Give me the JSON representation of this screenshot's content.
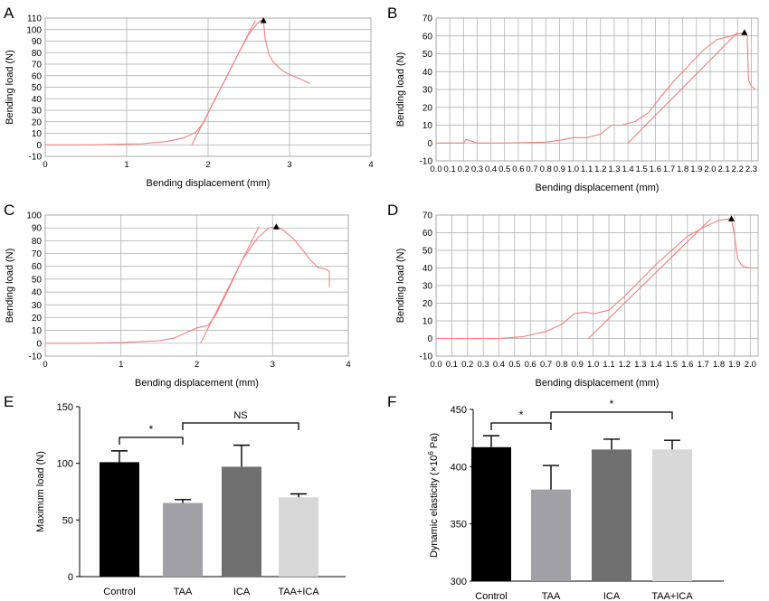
{
  "chart_data": [
    {
      "panel": "A",
      "type": "line",
      "xlabel": "Bending displacement (mm)",
      "ylabel": "Bending load (N)",
      "xlim": [
        0,
        4
      ],
      "ylim": [
        -10,
        110
      ],
      "xticks": [
        "0",
        "1",
        "2",
        "3",
        "4"
      ],
      "yticks": [
        "-10",
        "0",
        "10",
        "20",
        "30",
        "40",
        "50",
        "60",
        "70",
        "80",
        "90",
        "100",
        "110"
      ],
      "grid": true,
      "series": [
        {
          "x": [
            0,
            0.5,
            0.9,
            1.2,
            1.5,
            1.7,
            1.85,
            1.95,
            2.05,
            2.2,
            2.35,
            2.5,
            2.6,
            2.65,
            2.68,
            2.7,
            2.75,
            2.8,
            2.9,
            3.0,
            3.1,
            3.2,
            3.25
          ],
          "y": [
            0,
            0,
            0.5,
            1,
            3,
            6,
            11,
            20,
            35,
            55,
            76,
            96,
            105,
            108,
            108,
            92,
            78,
            72,
            65,
            61,
            58,
            55,
            53
          ]
        },
        {
          "x": [
            1.8,
            2.58
          ],
          "y": [
            0,
            108
          ]
        }
      ],
      "annotations": [
        {
          "marker": "triangle",
          "x": 2.68,
          "y": 108
        }
      ]
    },
    {
      "panel": "B",
      "type": "line",
      "xlabel": "Bending displacement (mm)",
      "ylabel": "Bending load (N)",
      "xlim": [
        0,
        2.35
      ],
      "ylim": [
        -10,
        70
      ],
      "xticks": [
        "0.0",
        "0.1",
        "0.2",
        "0.3",
        "0.4",
        "0.5",
        "0.6",
        "0.7",
        "0.8",
        "0.9",
        "1.0",
        "1.1",
        "1.2",
        "1.3",
        "1.4",
        "1.5",
        "1.6",
        "1.7",
        "1.8",
        "1.9",
        "2.0",
        "2.1",
        "2.2",
        "2.3"
      ],
      "yticks": [
        "-10",
        "0",
        "10",
        "20",
        "30",
        "40",
        "50",
        "60",
        "70"
      ],
      "grid": true,
      "series": [
        {
          "x": [
            0,
            0.2,
            0.22,
            0.3,
            0.5,
            0.8,
            0.9,
            1.0,
            1.1,
            1.2,
            1.28,
            1.35,
            1.45,
            1.55,
            1.65,
            1.75,
            1.85,
            1.95,
            2.05,
            2.15,
            2.2,
            2.25,
            2.27,
            2.28,
            2.3,
            2.33
          ],
          "y": [
            0,
            0,
            2,
            0,
            0,
            0.5,
            1.5,
            3,
            3,
            5,
            10,
            10,
            12,
            17,
            27,
            36,
            44,
            52,
            58,
            60,
            61,
            62,
            60,
            35,
            32,
            30
          ]
        },
        {
          "x": [
            1.4,
            2.2
          ],
          "y": [
            0,
            62
          ]
        }
      ],
      "annotations": [
        {
          "marker": "triangle",
          "x": 2.25,
          "y": 62
        }
      ]
    },
    {
      "panel": "C",
      "type": "line",
      "xlabel": "Bending displacement (mm)",
      "ylabel": "Bending load (N)",
      "xlim": [
        0,
        4
      ],
      "ylim": [
        -10,
        100
      ],
      "xticks": [
        "0",
        "1",
        "2",
        "3",
        "4"
      ],
      "yticks": [
        "-10",
        "0",
        "10",
        "20",
        "30",
        "40",
        "50",
        "60",
        "70",
        "80",
        "90",
        "100"
      ],
      "grid": true,
      "series": [
        {
          "x": [
            0,
            0.5,
            1.0,
            1.5,
            1.7,
            1.85,
            2.0,
            2.15,
            2.25,
            2.4,
            2.6,
            2.8,
            2.95,
            3.05,
            3.15,
            3.3,
            3.5,
            3.6,
            3.7,
            3.75,
            3.75
          ],
          "y": [
            0,
            0,
            0.5,
            2,
            4,
            8,
            12,
            14,
            22,
            40,
            65,
            82,
            90,
            91,
            88,
            80,
            65,
            59,
            58,
            56,
            44
          ]
        },
        {
          "x": [
            2.05,
            2.82
          ],
          "y": [
            0,
            91
          ]
        }
      ],
      "annotations": [
        {
          "marker": "triangle",
          "x": 3.05,
          "y": 91
        }
      ]
    },
    {
      "panel": "D",
      "type": "line",
      "xlabel": "Bending displacement (mm)",
      "ylabel": "Bending load (N)",
      "xlim": [
        0,
        2.05
      ],
      "ylim": [
        -10,
        70
      ],
      "xticks": [
        "0.0",
        "0.1",
        "0.2",
        "0.3",
        "0.4",
        "0.5",
        "0.6",
        "0.7",
        "0.8",
        "0.9",
        "1.0",
        "1.1",
        "1.2",
        "1.3",
        "1.4",
        "1.5",
        "1.6",
        "1.7",
        "1.8",
        "1.9",
        "2.0"
      ],
      "yticks": [
        "-10",
        "0",
        "10",
        "20",
        "30",
        "40",
        "50",
        "60",
        "70"
      ],
      "grid": true,
      "series": [
        {
          "x": [
            0,
            0.4,
            0.55,
            0.7,
            0.8,
            0.88,
            0.95,
            1.0,
            1.05,
            1.1,
            1.2,
            1.3,
            1.4,
            1.5,
            1.6,
            1.7,
            1.8,
            1.88,
            1.9,
            1.92,
            1.95,
            2.0,
            2.05
          ],
          "y": [
            0,
            0,
            1,
            4,
            8,
            14,
            15,
            14,
            15,
            16,
            24,
            33,
            42,
            50,
            58,
            63,
            67,
            68,
            58,
            45,
            41,
            40,
            40
          ]
        },
        {
          "x": [
            0.97,
            1.75
          ],
          "y": [
            0,
            68
          ]
        }
      ],
      "annotations": [
        {
          "marker": "triangle",
          "x": 1.88,
          "y": 68
        }
      ]
    },
    {
      "panel": "E",
      "type": "bar",
      "categories": [
        "Control",
        "TAA",
        "ICA",
        "TAA+ICA"
      ],
      "values": [
        101,
        65,
        97,
        70
      ],
      "errors": [
        10,
        3,
        19,
        3
      ],
      "colors": [
        "#000000",
        "#a0a0a6",
        "#6f6f6f",
        "#d8d8d8"
      ],
      "ylabel": "Maximum load (N)",
      "ylim": [
        0,
        150
      ],
      "yticks": [
        "0",
        "50",
        "100",
        "150"
      ],
      "significance": [
        {
          "from": 0,
          "to": 1,
          "label": "*"
        },
        {
          "from": 1,
          "to": 3,
          "label": "NS"
        }
      ]
    },
    {
      "panel": "F",
      "type": "bar",
      "categories": [
        "Control",
        "TAA",
        "ICA",
        "TAA+ICA"
      ],
      "values": [
        417,
        380,
        415,
        415
      ],
      "errors": [
        10,
        21,
        9,
        8
      ],
      "colors": [
        "#000000",
        "#a0a0a6",
        "#6f6f6f",
        "#d8d8d8"
      ],
      "ylabel_main": "Dynamic elasticity (×10",
      "ylabel_sup": "6",
      "ylabel_end": " Pa)",
      "ylim": [
        300,
        450
      ],
      "yticks": [
        "300",
        "350",
        "400",
        "450"
      ],
      "significance": [
        {
          "from": 0,
          "to": 1,
          "label": "*"
        },
        {
          "from": 1,
          "to": 3,
          "label": "*"
        }
      ]
    }
  ],
  "colors": {
    "curve": "#f08080",
    "grid": "#a8a8a8",
    "axis": "#000000"
  }
}
